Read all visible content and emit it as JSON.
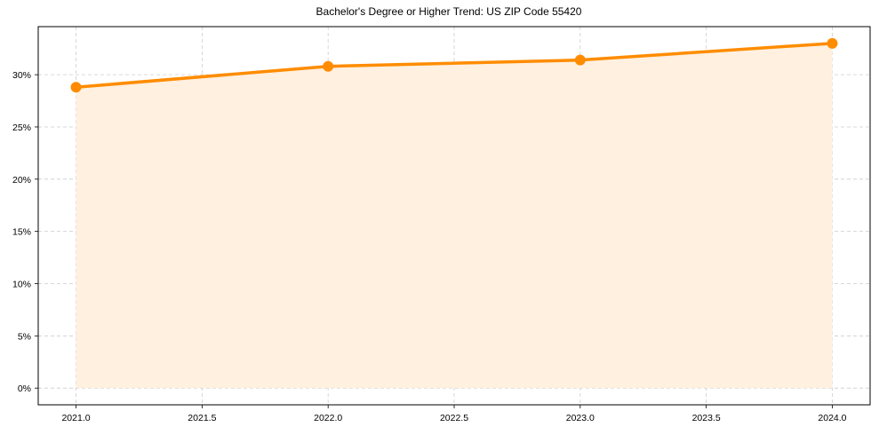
{
  "chart_data": {
    "type": "line",
    "title": "Bachelor's Degree or Higher Trend: US ZIP Code 55420",
    "xlabel": "",
    "ylabel": "",
    "x": [
      2021,
      2022,
      2023,
      2024
    ],
    "series": [
      {
        "name": "Bachelor's Degree or Higher",
        "values": [
          28.8,
          30.8,
          31.4,
          33.0
        ],
        "color": "#FF8C00",
        "fill": "#FFF0E0"
      }
    ],
    "x_ticks": [
      "2021.0",
      "2021.5",
      "2022.0",
      "2022.5",
      "2023.0",
      "2023.5",
      "2024.0"
    ],
    "x_tick_values": [
      2021.0,
      2021.5,
      2022.0,
      2022.5,
      2023.0,
      2023.5,
      2024.0
    ],
    "y_ticks": [
      "0%",
      "5%",
      "10%",
      "15%",
      "20%",
      "25%",
      "30%"
    ],
    "y_tick_values": [
      0,
      5,
      10,
      15,
      20,
      25,
      30
    ],
    "xlim": [
      2020.85,
      2024.15
    ],
    "ylim": [
      -1.6,
      34.6
    ],
    "grid": true,
    "legend": "none",
    "area_fill": true
  }
}
